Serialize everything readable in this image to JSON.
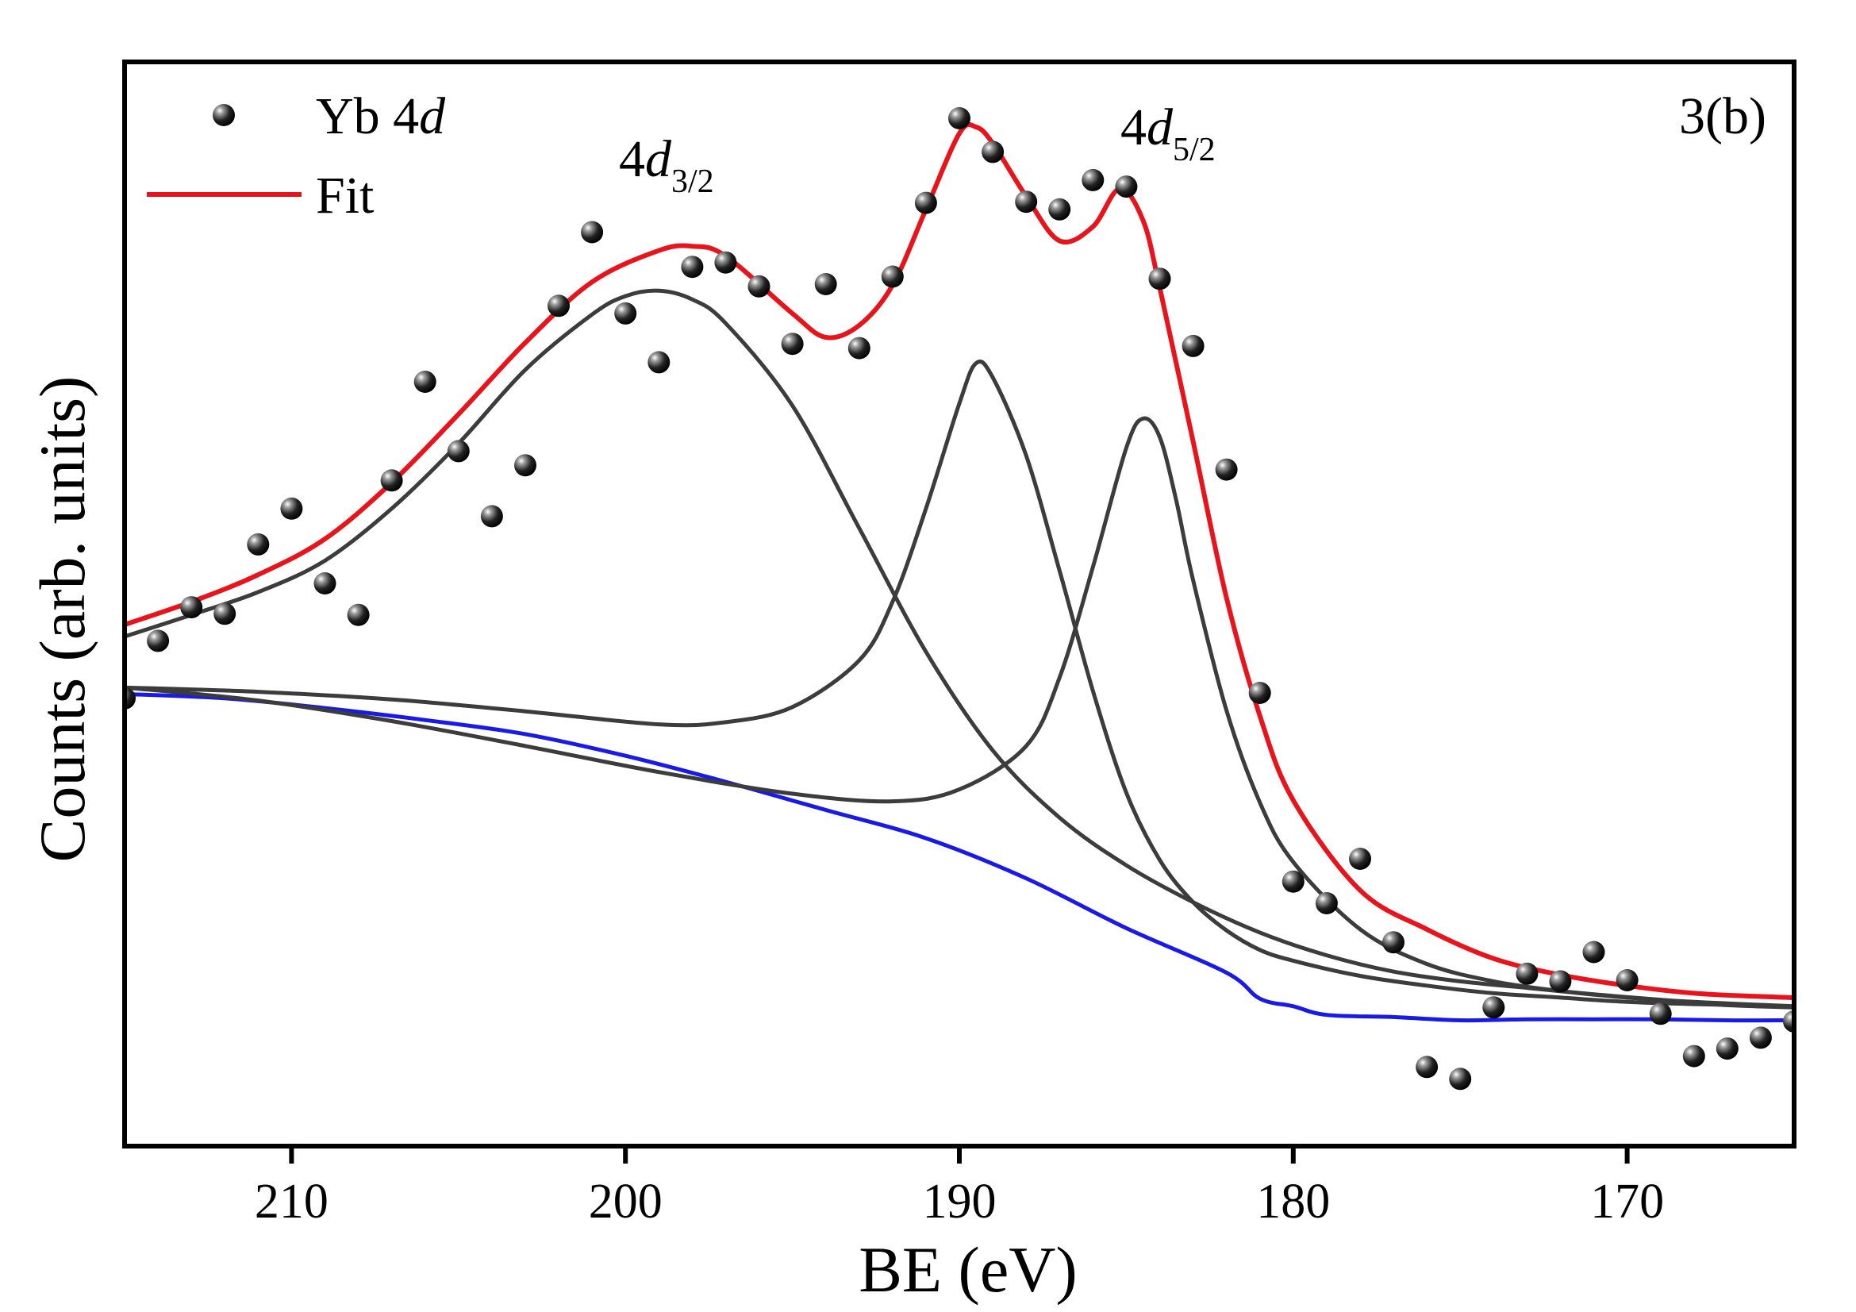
{
  "chart_data": {
    "type": "scatter",
    "title": "",
    "panel_label": "3(b)",
    "xlabel": "BE (eV)",
    "ylabel": "Counts (arb. units)",
    "xlim": [
      215,
      165
    ],
    "ylim": [
      0,
      1
    ],
    "x_ticks": [
      210,
      200,
      190,
      180,
      170
    ],
    "x_tick_labels": [
      "210",
      "200",
      "190",
      "180",
      "170"
    ],
    "y_ticks_shown": false,
    "legend": {
      "position": "top-left",
      "entries": [
        {
          "label_main": "Yb 4",
          "label_italic": "d",
          "marker": "sphere",
          "series": "data"
        },
        {
          "label_main": "Fit",
          "label_italic": "",
          "marker": "line",
          "color": "#e8141b",
          "series": "fit"
        }
      ]
    },
    "annotations": [
      {
        "id": "peak-3-2",
        "main": "4",
        "italic": "d",
        "sub": "3/2",
        "at": [
          198.3,
          0.9
        ]
      },
      {
        "id": "peak-5-2",
        "main": "4",
        "italic": "d",
        "sub": "5/2",
        "at": [
          185.9,
          0.93
        ]
      }
    ],
    "colors": {
      "fit": "#e8141b",
      "components": "#3c3c3c",
      "background": "#1a1ae6",
      "frame": "#000000"
    },
    "data_points": {
      "x": [
        215,
        214,
        213,
        212,
        211,
        210,
        209,
        208,
        207,
        206,
        205,
        204,
        203,
        202,
        201,
        200,
        199,
        198,
        197,
        196,
        195,
        194,
        193,
        192,
        191,
        190,
        189,
        188,
        187,
        186,
        185,
        184,
        183,
        182,
        181,
        180,
        179,
        178,
        177,
        176,
        175,
        174,
        173,
        172,
        171,
        170,
        169,
        168,
        167,
        166,
        165
      ],
      "y": [
        0.413,
        0.466,
        0.497,
        0.491,
        0.555,
        0.588,
        0.519,
        0.49,
        0.614,
        0.705,
        0.641,
        0.581,
        0.628,
        0.775,
        0.843,
        0.768,
        0.723,
        0.811,
        0.815,
        0.793,
        0.74,
        0.795,
        0.736,
        0.802,
        0.87,
        0.948,
        0.917,
        0.871,
        0.864,
        0.891,
        0.885,
        0.8,
        0.738,
        0.624,
        0.418,
        0.244,
        0.224,
        0.265,
        0.188,
        0.073,
        0.062,
        0.128,
        0.159,
        0.152,
        0.179,
        0.153,
        0.122,
        0.083,
        0.09,
        0.1,
        0.115
      ]
    },
    "series": [
      {
        "name": "Fit",
        "color": "#e8141b",
        "x": [
          215,
          213,
          211,
          209,
          207,
          205,
          203,
          201,
          199,
          198,
          197,
          195,
          194,
          193,
          192,
          191,
          190,
          189.5,
          189,
          188,
          187,
          186,
          185.2,
          184.5,
          184,
          183,
          182,
          181,
          180,
          178,
          176,
          174,
          172,
          170,
          168,
          166,
          165
        ],
        "y": [
          0.481,
          0.502,
          0.527,
          0.56,
          0.612,
          0.675,
          0.741,
          0.797,
          0.826,
          0.83,
          0.821,
          0.768,
          0.746,
          0.757,
          0.794,
          0.864,
          0.934,
          0.94,
          0.925,
          0.876,
          0.835,
          0.848,
          0.883,
          0.854,
          0.792,
          0.65,
          0.506,
          0.397,
          0.319,
          0.236,
          0.2,
          0.173,
          0.158,
          0.148,
          0.141,
          0.138,
          0.137
        ]
      },
      {
        "name": "Component 4d3/2",
        "color": "#3c3c3c",
        "x": [
          215,
          213,
          211,
          209,
          207,
          205,
          203,
          201,
          200,
          199,
          198,
          197,
          195,
          193,
          191,
          189,
          187,
          185,
          183,
          181,
          179,
          177,
          175,
          173,
          171,
          169,
          167,
          165
        ],
        "y": [
          0.47,
          0.49,
          0.511,
          0.54,
          0.588,
          0.648,
          0.716,
          0.767,
          0.784,
          0.789,
          0.781,
          0.759,
          0.683,
          0.57,
          0.456,
          0.365,
          0.303,
          0.259,
          0.225,
          0.197,
          0.176,
          0.161,
          0.152,
          0.146,
          0.14,
          0.135,
          0.13,
          0.128
        ]
      },
      {
        "name": "Component 4d(middle)",
        "color": "#3c3c3c",
        "x": [
          215,
          211,
          207,
          203,
          199,
          197,
          195,
          193,
          192,
          191,
          190,
          189.5,
          189,
          188,
          187,
          186,
          185,
          184,
          183,
          182,
          181,
          180,
          178,
          176,
          174,
          172,
          170,
          168,
          165
        ],
        "y": [
          0.423,
          0.419,
          0.412,
          0.401,
          0.389,
          0.391,
          0.405,
          0.448,
          0.502,
          0.588,
          0.685,
          0.722,
          0.709,
          0.637,
          0.531,
          0.42,
          0.326,
          0.264,
          0.225,
          0.199,
          0.181,
          0.171,
          0.157,
          0.148,
          0.141,
          0.137,
          0.133,
          0.131,
          0.129
        ]
      },
      {
        "name": "Component 4d5/2",
        "color": "#3c3c3c",
        "x": [
          215,
          211,
          207,
          203,
          199,
          195,
          192,
          190,
          188,
          187,
          186,
          185,
          184.5,
          184,
          183.5,
          183,
          182,
          181,
          180,
          178,
          176,
          174,
          172,
          170,
          168,
          165
        ],
        "y": [
          0.423,
          0.411,
          0.392,
          0.369,
          0.345,
          0.325,
          0.318,
          0.329,
          0.369,
          0.432,
          0.534,
          0.644,
          0.671,
          0.654,
          0.595,
          0.522,
          0.402,
          0.317,
          0.262,
          0.2,
          0.168,
          0.152,
          0.143,
          0.137,
          0.133,
          0.129
        ]
      },
      {
        "name": "Background",
        "color": "#1a1ae6",
        "x": [
          215,
          212,
          209,
          206,
          203,
          200,
          197,
          194,
          191,
          188,
          185,
          182,
          181,
          180,
          179,
          177,
          175,
          173,
          171,
          169,
          167,
          165
        ],
        "y": [
          0.417,
          0.413,
          0.404,
          0.393,
          0.38,
          0.36,
          0.336,
          0.31,
          0.284,
          0.247,
          0.201,
          0.16,
          0.136,
          0.129,
          0.121,
          0.119,
          0.116,
          0.117,
          0.117,
          0.117,
          0.116,
          0.116
        ]
      }
    ]
  }
}
